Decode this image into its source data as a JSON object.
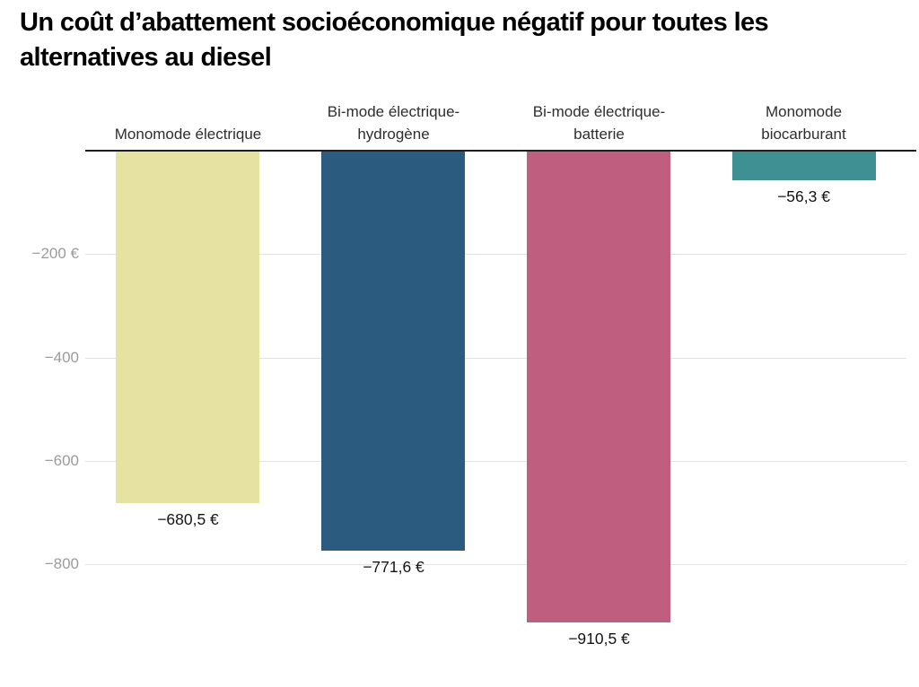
{
  "title": "Un coût d’abattement socioéconomique négatif pour toutes les alternatives au diesel",
  "chart_data": {
    "type": "bar",
    "orientation": "vertical",
    "unit": "€",
    "title": "Un coût d’abattement socioéconomique négatif pour toutes les alternatives au diesel",
    "categories": [
      "Monomode électrique",
      "Bi-mode électrique-hydrogène",
      "Bi-mode électrique-batterie",
      "Monomode biocarburant"
    ],
    "category_label_lines": [
      [
        "Monomode électrique"
      ],
      [
        "Bi-mode électrique-",
        "hydrogène"
      ],
      [
        "Bi-mode électrique-",
        "batterie"
      ],
      [
        "Monomode",
        "biocarburant"
      ]
    ],
    "values": [
      -680.5,
      -771.6,
      -910.5,
      -56.3
    ],
    "value_labels": [
      "−680,5 €",
      "−771,6 €",
      "−910,5 €",
      "−56,3 €"
    ],
    "bar_colors": [
      "#e6e2a1",
      "#2b5b7e",
      "#c05e80",
      "#3f9092"
    ],
    "y_ticks": [
      {
        "value": -200,
        "label": "−200 €"
      },
      {
        "value": -400,
        "label": "−400"
      },
      {
        "value": -600,
        "label": "−600"
      },
      {
        "value": -800,
        "label": "−800"
      }
    ],
    "ylim": [
      -1000,
      0
    ],
    "grid": true,
    "legend": "none",
    "baseline_value": 0,
    "category_label_position": "above-baseline",
    "value_label_position": "below-bar-end"
  },
  "colors": {
    "background": "#ffffff",
    "title": "#000000",
    "baseline": "#1f1f1f",
    "gridline": "#e2e2e2",
    "tick_label": "#9b9b9b",
    "category_label": "#2e2e2e",
    "value_label": "#141414"
  }
}
